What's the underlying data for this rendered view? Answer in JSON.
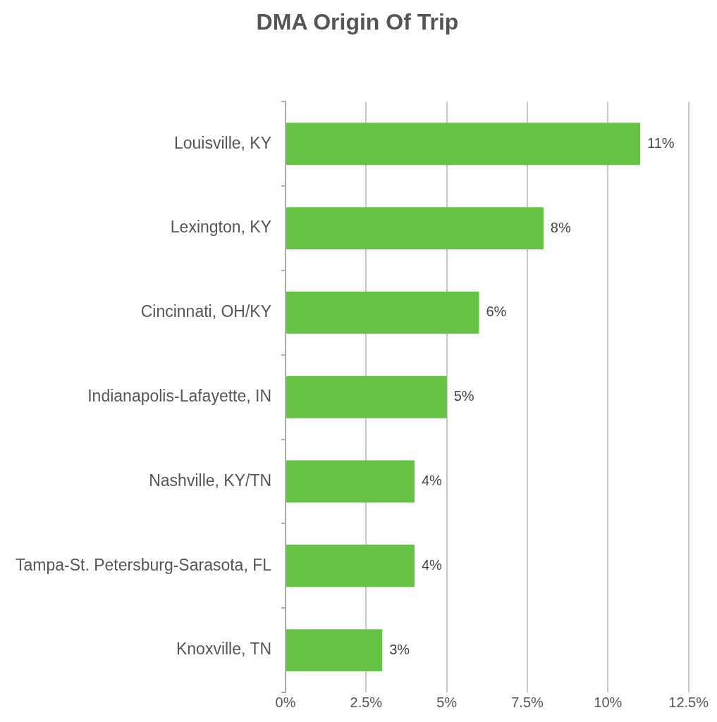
{
  "chart_data": {
    "type": "bar",
    "orientation": "horizontal",
    "title": "DMA Origin Of Trip",
    "categories": [
      "Louisville, KY",
      "Lexington, KY",
      "Cincinnati, OH/KY",
      "Indianapolis-Lafayette, IN",
      "Nashville, KY/TN",
      "Tampa-St. Petersburg-Sarasota, FL",
      "Knoxville, TN"
    ],
    "values": [
      11,
      8,
      6,
      5,
      4,
      4,
      3
    ],
    "value_labels": [
      "11%",
      "8%",
      "6%",
      "5%",
      "4%",
      "4%",
      "3%"
    ],
    "color": "#66c244",
    "xlim": [
      0,
      12.5
    ],
    "xticks": [
      {
        "value": 0,
        "label": "0%"
      },
      {
        "value": 2.5,
        "label": "2.5%"
      },
      {
        "value": 5,
        "label": "5%"
      },
      {
        "value": 7.5,
        "label": "7.5%"
      },
      {
        "value": 10,
        "label": "10%"
      },
      {
        "value": 12.5,
        "label": "12.5%"
      }
    ],
    "grid": "x",
    "legend": false
  }
}
